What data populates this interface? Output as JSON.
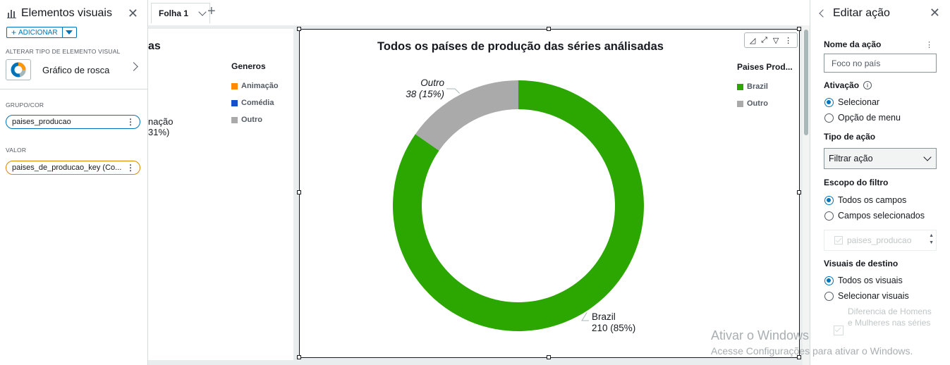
{
  "left_panel": {
    "title": "Elementos visuais",
    "add_label": "ADICIONAR",
    "change_type_label": "ALTERAR TIPO DE ELEMENTO VISUAL",
    "visual_type": "Gráfico de rosca",
    "group_label": "GRUPO/COR",
    "group_field": "paises_producao",
    "value_label": "VALOR",
    "value_field": "paises_de_producao_key (Co..."
  },
  "tabs": [
    {
      "label": "Folha 1"
    }
  ],
  "visual_left": {
    "title_fragment": "as",
    "legend_title": "Generos",
    "legend": [
      {
        "label": "Animação",
        "color": "#ff8a00"
      },
      {
        "label": "Comédia",
        "color": "#1450c8"
      },
      {
        "label": "Outro",
        "color": "#aaaaaa"
      }
    ],
    "slice_label_line1": "nação",
    "slice_label_line2": "31%)"
  },
  "visual_main": {
    "title": "Todos os países de produção das séries análisadas",
    "legend_title": "Paises Prod...",
    "toolbar_icons": [
      "chart-type-icon",
      "expand-icon",
      "filter-icon",
      "more-icon"
    ]
  },
  "chart_data": {
    "type": "pie",
    "title": "Todos os países de produção das séries análisadas",
    "donut": true,
    "series": [
      {
        "name": "Paises Prod...",
        "categories": [
          "Brazil",
          "Outro"
        ],
        "values": [
          210,
          38
        ],
        "percents": [
          "85%",
          "15%"
        ]
      }
    ],
    "colors": {
      "Brazil": "#2ca600",
      "Outro": "#aaaaaa"
    },
    "labels": {
      "brazil_name": "Brazil",
      "brazil_value": "210 (85%)",
      "outro_name": "Outro",
      "outro_value": "38 (15%)"
    },
    "legend": [
      {
        "label": "Brazil",
        "color": "#2ca600"
      },
      {
        "label": "Outro",
        "color": "#aaaaaa"
      }
    ],
    "legend_position": "right"
  },
  "right_panel": {
    "title": "Editar ação",
    "action_name_label": "Nome da ação",
    "action_name_value": "Foco no país",
    "activation_label": "Ativação",
    "activation_options": [
      "Selecionar",
      "Opção de menu"
    ],
    "action_type_label": "Tipo de ação",
    "action_type_value": "Filtrar ação",
    "filter_scope_label": "Escopo do filtro",
    "filter_scope_options": [
      "Todos os campos",
      "Campos selecionados"
    ],
    "disabled_field": "paises_producao",
    "target_visuals_label": "Visuais de destino",
    "target_options": [
      "Todos os visuais",
      "Selecionar visuais"
    ],
    "disabled_visual": "Diferencia de Homens e Mulheres nas séries"
  },
  "watermark": {
    "line1": "Ativar o Windows",
    "line2": "Acesse Configurações para ativar o Windows."
  }
}
